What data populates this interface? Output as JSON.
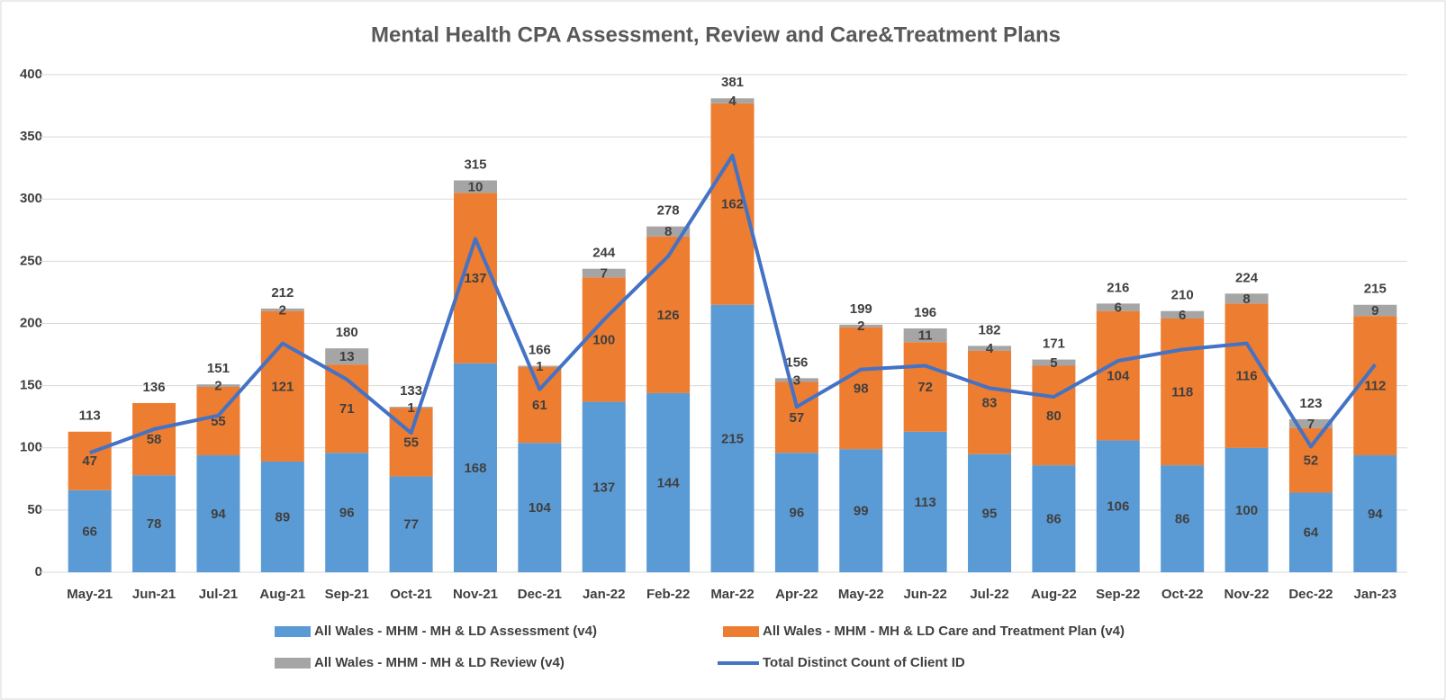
{
  "chart_data": {
    "type": "bar",
    "stacked": true,
    "title": "Mental Health CPA Assessment, Review and Care&Treatment Plans",
    "categories": [
      "May-21",
      "Jun-21",
      "Jul-21",
      "Aug-21",
      "Sep-21",
      "Oct-21",
      "Nov-21",
      "Dec-21",
      "Jan-22",
      "Feb-22",
      "Mar-22",
      "Apr-22",
      "May-22",
      "Jun-22",
      "Jul-22",
      "Aug-22",
      "Sep-22",
      "Oct-22",
      "Nov-22",
      "Dec-22",
      "Jan-23"
    ],
    "series": [
      {
        "name": "All Wales - MHM - MH & LD Assessment (v4)",
        "type": "bar",
        "color": "#5b9bd5",
        "values": [
          66,
          78,
          94,
          89,
          96,
          77,
          168,
          104,
          137,
          144,
          215,
          96,
          99,
          113,
          95,
          86,
          106,
          86,
          100,
          64,
          94
        ]
      },
      {
        "name": "All Wales - MHM - MH & LD Care and Treatment Plan (v4)",
        "type": "bar",
        "color": "#ed7d31",
        "values": [
          47,
          58,
          55,
          121,
          71,
          55,
          137,
          61,
          100,
          126,
          162,
          57,
          98,
          72,
          83,
          80,
          104,
          118,
          116,
          52,
          112
        ]
      },
      {
        "name": "All Wales - MHM - MH & LD Review (v4)",
        "type": "bar",
        "color": "#a5a5a5",
        "values": [
          null,
          null,
          2,
          2,
          13,
          1,
          10,
          1,
          7,
          8,
          4,
          3,
          2,
          11,
          4,
          5,
          6,
          6,
          8,
          7,
          9
        ]
      },
      {
        "name": "Total Distinct Count of Client ID",
        "type": "line",
        "color": "#4472c4",
        "values": [
          96,
          115,
          126,
          184,
          155,
          112,
          268,
          147,
          203,
          254,
          335,
          133,
          163,
          166,
          148,
          141,
          170,
          179,
          184,
          101,
          167
        ]
      }
    ],
    "totals": [
      113,
      136,
      151,
      212,
      180,
      133,
      315,
      166,
      244,
      278,
      381,
      156,
      199,
      196,
      182,
      171,
      216,
      210,
      224,
      123,
      215
    ],
    "ylim": [
      0,
      400
    ],
    "yticks": [
      0,
      50,
      100,
      150,
      200,
      250,
      300,
      350,
      400
    ],
    "grid": true
  }
}
